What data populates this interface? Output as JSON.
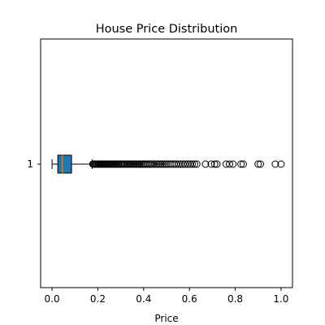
{
  "chart_data": {
    "type": "boxplot",
    "orientation": "horizontal",
    "title": "House Price Distribution",
    "xlabel": "Price",
    "ylabel": "",
    "xlim": [
      -0.05,
      1.05
    ],
    "xticks": [
      "0.0",
      "0.2",
      "0.4",
      "0.6",
      "0.8",
      "1.0"
    ],
    "xtick_values": [
      0.0,
      0.2,
      0.4,
      0.6,
      0.8,
      1.0
    ],
    "categories": [
      "1"
    ],
    "box": {
      "whisker_low": 0.0,
      "q1": 0.025,
      "median": 0.045,
      "q3": 0.085,
      "whisker_high": 0.175
    },
    "outliers": [
      0.178,
      0.182,
      0.186,
      0.19,
      0.194,
      0.198,
      0.202,
      0.206,
      0.21,
      0.214,
      0.218,
      0.222,
      0.226,
      0.23,
      0.234,
      0.238,
      0.242,
      0.246,
      0.25,
      0.255,
      0.26,
      0.265,
      0.27,
      0.275,
      0.28,
      0.285,
      0.29,
      0.295,
      0.3,
      0.305,
      0.31,
      0.316,
      0.322,
      0.328,
      0.334,
      0.34,
      0.346,
      0.352,
      0.358,
      0.364,
      0.37,
      0.376,
      0.382,
      0.388,
      0.394,
      0.4,
      0.407,
      0.414,
      0.421,
      0.428,
      0.435,
      0.442,
      0.45,
      0.458,
      0.466,
      0.474,
      0.482,
      0.49,
      0.498,
      0.506,
      0.515,
      0.524,
      0.533,
      0.542,
      0.552,
      0.562,
      0.572,
      0.582,
      0.592,
      0.602,
      0.612,
      0.622,
      0.632,
      0.67,
      0.695,
      0.71,
      0.72,
      0.76,
      0.775,
      0.79,
      0.825,
      0.835,
      0.9,
      0.91,
      0.975,
      1.0
    ],
    "colors": {
      "box_fill": "#1f77b4",
      "median": "#ff7f0e",
      "lines": "#000000"
    }
  }
}
